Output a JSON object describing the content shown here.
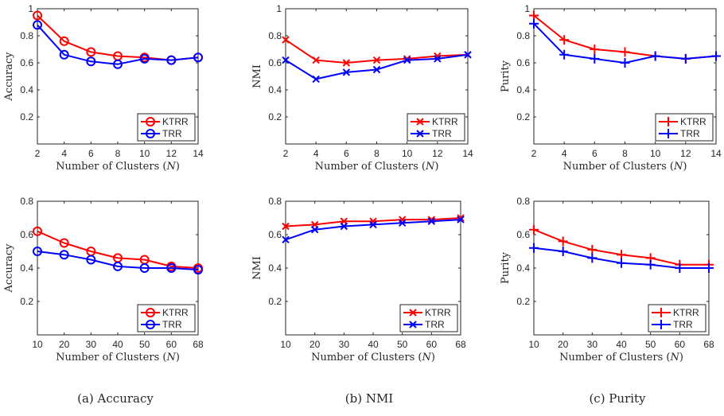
{
  "colors": {
    "ktrr": "#ff0000",
    "trr": "#0000ff",
    "axis": "#262626",
    "box": "#262626"
  },
  "chart_data": [
    {
      "id": "acc-top",
      "type": "line",
      "xlabel": "Number of Clusters (N)",
      "ylabel": "Accuracy",
      "x": [
        "2",
        "4",
        "6",
        "8",
        "10",
        "12",
        "14"
      ],
      "yticks": [
        "0.2",
        "0.4",
        "0.6",
        "0.8",
        "1"
      ],
      "ylim": [
        0,
        1
      ],
      "marker": "circle",
      "series": [
        {
          "name": "KTRR",
          "values": [
            0.95,
            0.76,
            0.68,
            0.65,
            0.64,
            0.62,
            0.64
          ]
        },
        {
          "name": "TRR",
          "values": [
            0.88,
            0.66,
            0.61,
            0.59,
            0.63,
            0.62,
            0.64
          ]
        }
      ]
    },
    {
      "id": "nmi-top",
      "type": "line",
      "xlabel": "Number of Clusters (N)",
      "ylabel": "NMI",
      "x": [
        "2",
        "4",
        "6",
        "8",
        "10",
        "12",
        "14"
      ],
      "yticks": [
        "0.2",
        "0.4",
        "0.6",
        "0.8",
        "1"
      ],
      "ylim": [
        0,
        1
      ],
      "marker": "x",
      "series": [
        {
          "name": "KTRR",
          "values": [
            0.77,
            0.62,
            0.6,
            0.62,
            0.63,
            0.65,
            0.66
          ]
        },
        {
          "name": "TRR",
          "values": [
            0.62,
            0.48,
            0.53,
            0.55,
            0.62,
            0.63,
            0.66
          ]
        }
      ]
    },
    {
      "id": "pur-top",
      "type": "line",
      "xlabel": "Number of Clusters (N)",
      "ylabel": "Purity",
      "x": [
        "2",
        "4",
        "6",
        "8",
        "10",
        "12",
        "14"
      ],
      "yticks": [
        "0.2",
        "0.4",
        "0.6",
        "0.8",
        "1"
      ],
      "ylim": [
        0,
        1
      ],
      "marker": "plus",
      "series": [
        {
          "name": "KTRR",
          "values": [
            0.95,
            0.77,
            0.7,
            0.68,
            0.65,
            0.63,
            0.65
          ]
        },
        {
          "name": "TRR",
          "values": [
            0.89,
            0.66,
            0.63,
            0.6,
            0.65,
            0.63,
            0.65
          ]
        }
      ]
    },
    {
      "id": "acc-bot",
      "type": "line",
      "xlabel": "Number of Clusters (N)",
      "ylabel": "Accuracy",
      "x": [
        "10",
        "20",
        "30",
        "40",
        "50",
        "60",
        "68"
      ],
      "yticks": [
        "0.2",
        "0.4",
        "0.6",
        "0.8"
      ],
      "ylim": [
        0,
        0.8
      ],
      "marker": "circle",
      "series": [
        {
          "name": "KTRR",
          "values": [
            0.62,
            0.55,
            0.5,
            0.46,
            0.45,
            0.41,
            0.4
          ]
        },
        {
          "name": "TRR",
          "values": [
            0.5,
            0.48,
            0.45,
            0.41,
            0.4,
            0.4,
            0.39
          ]
        }
      ]
    },
    {
      "id": "nmi-bot",
      "type": "line",
      "xlabel": "Number of Clusters (N)",
      "ylabel": "NMI",
      "x": [
        "10",
        "20",
        "30",
        "40",
        "50",
        "60",
        "68"
      ],
      "yticks": [
        "0.2",
        "0.4",
        "0.6",
        "0.8"
      ],
      "ylim": [
        0,
        0.8
      ],
      "marker": "x",
      "series": [
        {
          "name": "KTRR",
          "values": [
            0.65,
            0.66,
            0.68,
            0.68,
            0.69,
            0.69,
            0.7
          ]
        },
        {
          "name": "TRR",
          "values": [
            0.57,
            0.63,
            0.65,
            0.66,
            0.67,
            0.68,
            0.69
          ]
        }
      ]
    },
    {
      "id": "pur-bot",
      "type": "line",
      "xlabel": "Number of Clusters (N)",
      "ylabel": "Purity",
      "x": [
        "10",
        "20",
        "30",
        "40",
        "50",
        "60",
        "68"
      ],
      "yticks": [
        "0.2",
        "0.4",
        "0.6",
        "0.8"
      ],
      "ylim": [
        0,
        0.8
      ],
      "marker": "plus",
      "series": [
        {
          "name": "KTRR",
          "values": [
            0.63,
            0.56,
            0.51,
            0.48,
            0.46,
            0.42,
            0.42
          ]
        },
        {
          "name": "TRR",
          "values": [
            0.52,
            0.5,
            0.46,
            0.43,
            0.42,
            0.4,
            0.4
          ]
        }
      ]
    }
  ],
  "captions": [
    "(a)  Accuracy",
    "(b)  NMI",
    "(c)  Purity"
  ]
}
